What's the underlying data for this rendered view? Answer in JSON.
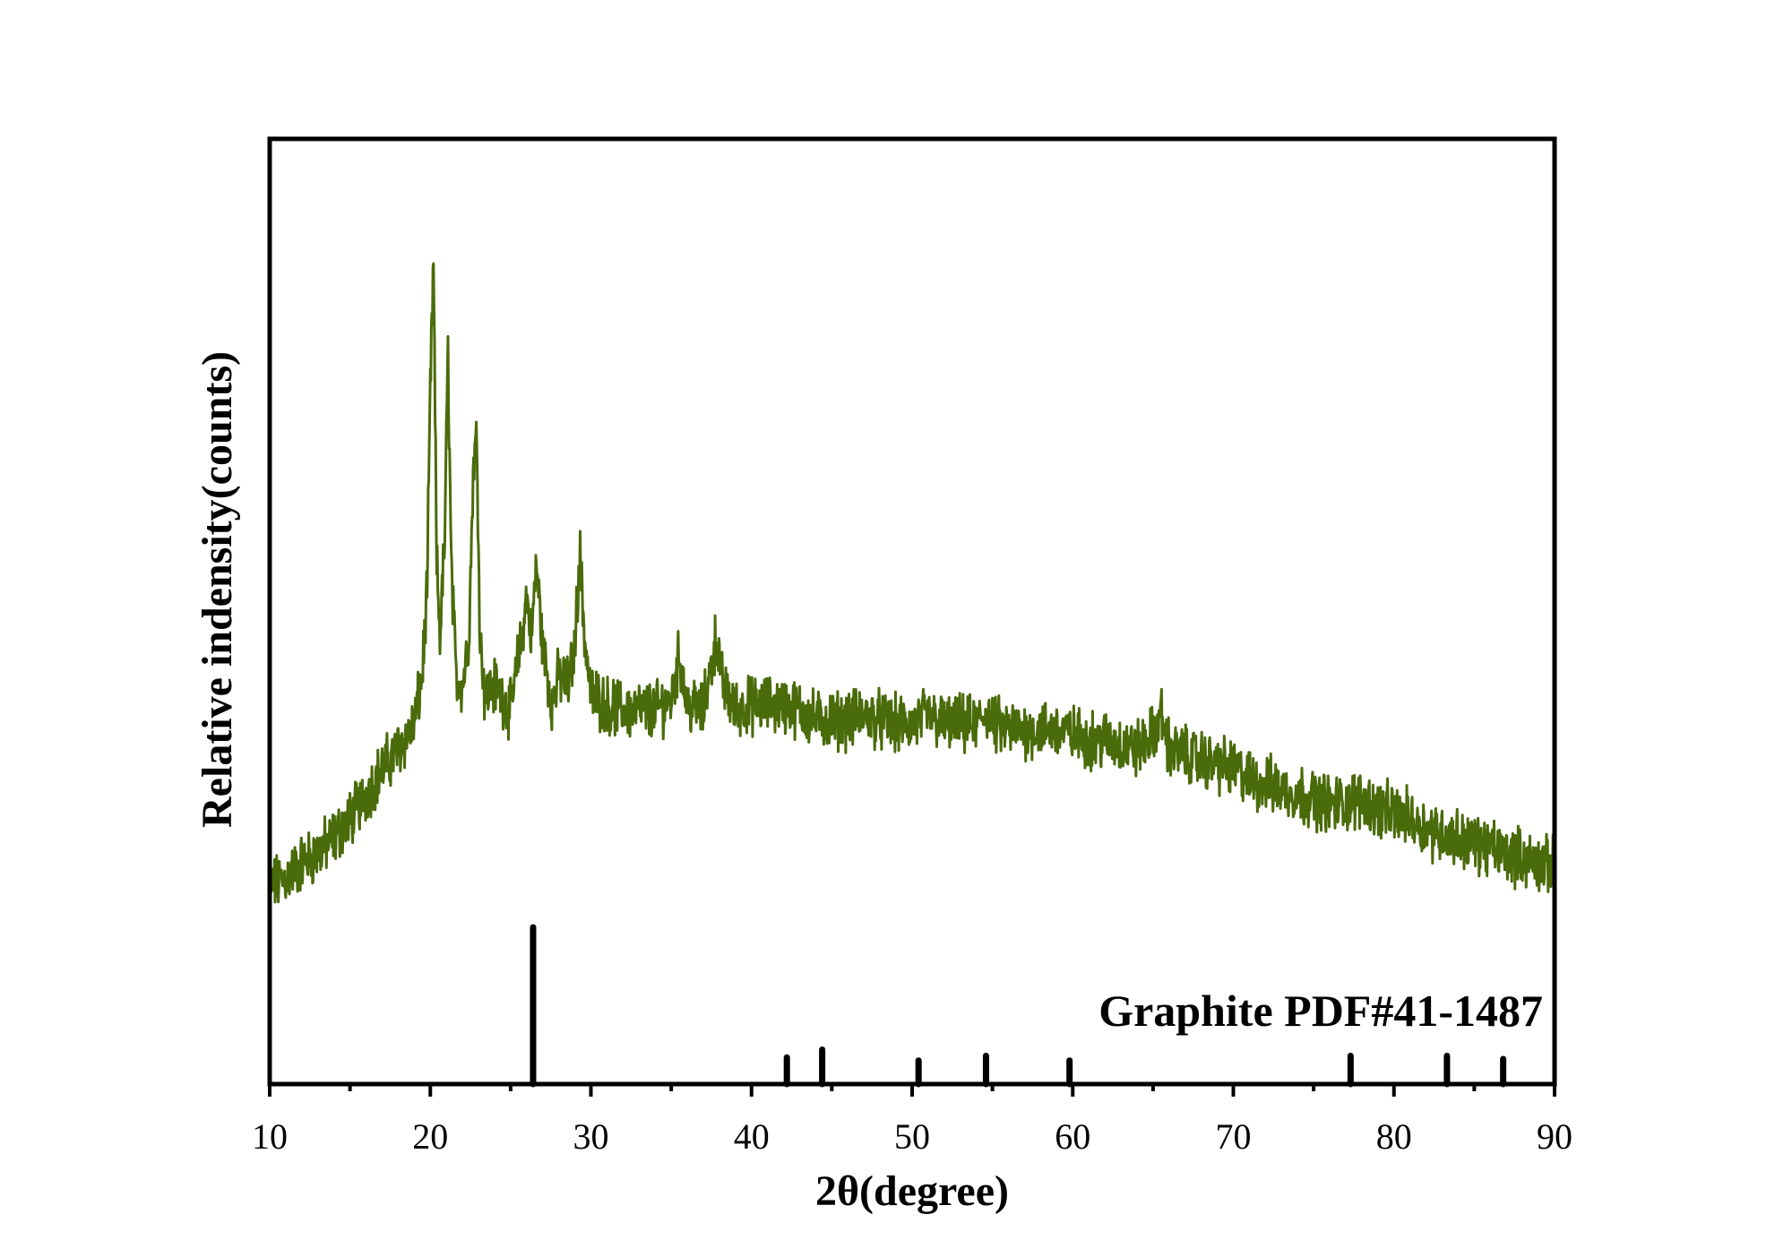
{
  "chart_data": {
    "type": "line",
    "title": "",
    "xlabel": "2θ(degree)",
    "ylabel": "Relative indensity(counts)",
    "xlim": [
      10,
      90
    ],
    "x_ticks": [
      10,
      20,
      30,
      40,
      50,
      60,
      70,
      80,
      90
    ],
    "x_tick_labels": [
      "10",
      "20",
      "30",
      "40",
      "50",
      "60",
      "70",
      "80",
      "90"
    ],
    "y_ticks_shown": false,
    "grid": false,
    "colors": {
      "series": "#4a6b0a",
      "reference": "#000000",
      "frame": "#000000"
    },
    "series": [
      {
        "x": [
          10,
          11,
          12,
          13,
          14,
          15,
          16,
          17,
          18,
          19,
          19.5,
          19.8,
          20.0,
          20.2,
          20.4,
          20.6,
          20.9,
          21.1,
          21.3,
          21.6,
          22.0,
          22.4,
          22.7,
          22.9,
          23.1,
          23.4,
          24,
          25,
          25.6,
          26.0,
          26.3,
          26.6,
          27.0,
          27.6,
          28.0,
          28.6,
          29.0,
          29.3,
          29.6,
          30,
          31,
          32,
          33,
          34,
          35,
          35.5,
          36,
          37,
          37.8,
          38.2,
          39,
          40,
          41,
          42,
          43,
          44,
          45,
          46,
          47,
          48,
          49,
          50,
          51,
          52,
          53,
          54,
          54.7,
          55,
          56,
          57,
          58,
          59,
          60,
          61,
          62,
          63,
          64,
          65,
          65.5,
          66,
          67,
          68,
          69,
          70,
          71,
          72,
          73,
          74,
          75,
          76,
          77,
          78,
          79,
          80,
          81,
          82,
          83,
          84,
          85,
          86,
          87,
          88,
          89,
          90
        ],
        "y": [
          -0.31,
          -0.29,
          -0.26,
          -0.24,
          -0.21,
          -0.17,
          -0.12,
          -0.07,
          -0.03,
          0.02,
          0.12,
          0.3,
          0.7,
          0.95,
          0.35,
          0.2,
          0.4,
          0.78,
          0.35,
          0.12,
          0.1,
          0.2,
          0.56,
          0.6,
          0.2,
          0.08,
          0.1,
          0.05,
          0.18,
          0.28,
          0.2,
          0.35,
          0.18,
          0.06,
          0.12,
          0.1,
          0.18,
          0.38,
          0.2,
          0.08,
          0.06,
          0.05,
          0.05,
          0.05,
          0.07,
          0.16,
          0.06,
          0.05,
          0.2,
          0.1,
          0.05,
          0.06,
          0.06,
          0.06,
          0.05,
          0.03,
          0.03,
          0.03,
          0.04,
          0.03,
          0.02,
          0.02,
          0.04,
          0.02,
          0.02,
          0.02,
          0.05,
          0.02,
          0.01,
          0.01,
          0.01,
          0.01,
          0.0,
          -0.01,
          -0.01,
          -0.02,
          -0.03,
          0.0,
          0.04,
          -0.03,
          -0.04,
          -0.05,
          -0.06,
          -0.07,
          -0.09,
          -0.1,
          -0.11,
          -0.12,
          -0.13,
          -0.14,
          -0.14,
          -0.13,
          -0.15,
          -0.16,
          -0.17,
          -0.19,
          -0.2,
          -0.21,
          -0.22,
          -0.23,
          -0.24,
          -0.25,
          -0.26,
          -0.27
        ]
      }
    ],
    "reference_pattern": {
      "label": "Graphite PDF#41-1487",
      "positions": [
        26.4,
        42.2,
        44.4,
        50.4,
        54.6,
        59.8,
        77.3,
        83.3,
        86.8
      ],
      "intensities": [
        100,
        17,
        22,
        15,
        18,
        15,
        18,
        18,
        16
      ]
    }
  }
}
